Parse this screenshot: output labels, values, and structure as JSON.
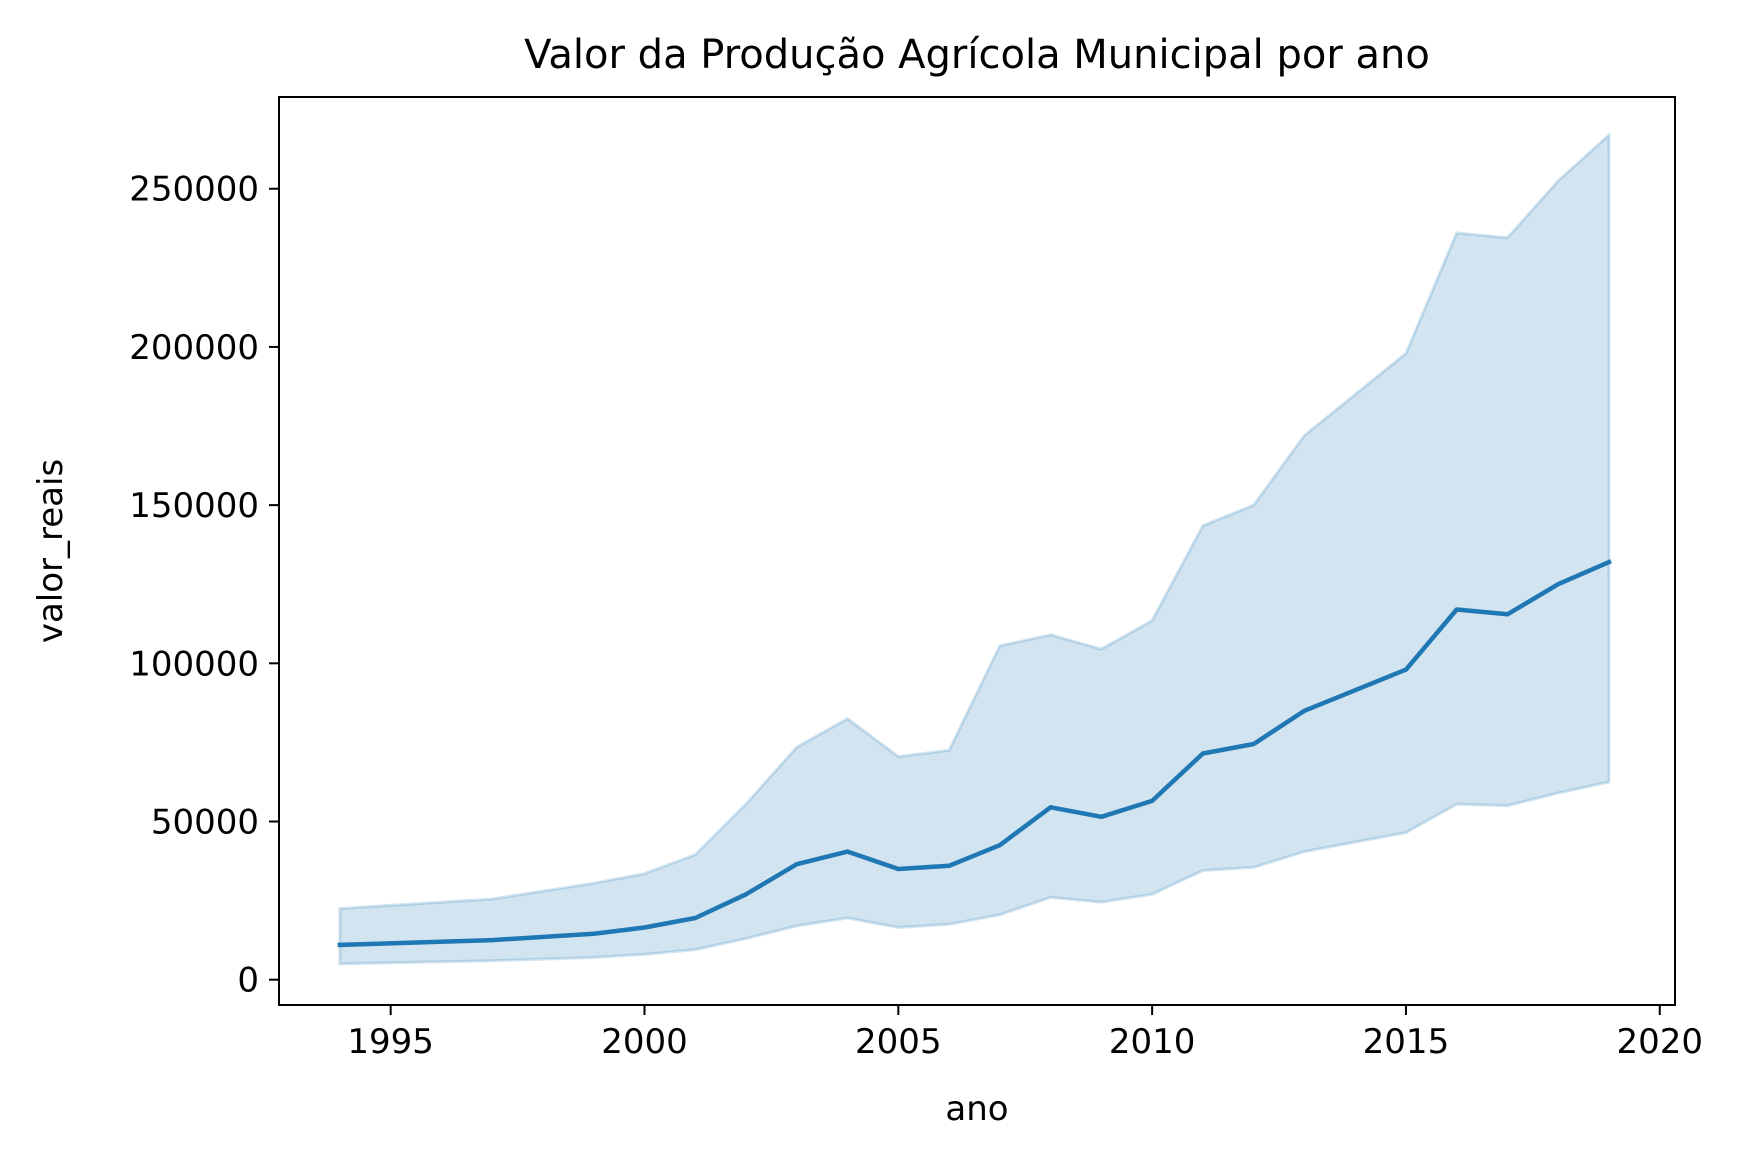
{
  "chart_data": {
    "type": "line",
    "title": "Valor da Produção Agrícola Municipal por ano",
    "xlabel": "ano",
    "ylabel": "valor_reais",
    "xlim": [
      1992.8,
      2020.3
    ],
    "ylim": [
      -8000,
      279000
    ],
    "x_ticks": [
      1995,
      2000,
      2005,
      2010,
      2015,
      2020
    ],
    "y_ticks": [
      0,
      50000,
      100000,
      150000,
      200000,
      250000
    ],
    "grid": false,
    "legend": "none",
    "colors": {
      "line": "#1f77b4",
      "band": "#1f77b4"
    },
    "x": [
      1994,
      1997,
      1999,
      2000,
      2001,
      2002,
      2003,
      2004,
      2005,
      2006,
      2007,
      2008,
      2009,
      2010,
      2011,
      2012,
      2013,
      2014,
      2015,
      2016,
      2017,
      2018,
      2019
    ],
    "series": [
      {
        "values": [
          11000,
          12500,
          14500,
          16500,
          19500,
          27000,
          36500,
          40500,
          35000,
          36000,
          42500,
          54500,
          51500,
          56500,
          71500,
          74500,
          85000,
          91500,
          98000,
          117000,
          115500,
          125000,
          132000
        ],
        "ci_lower": [
          5000,
          6000,
          7000,
          8000,
          9500,
          13000,
          17000,
          19500,
          16500,
          17500,
          20500,
          26000,
          24500,
          27000,
          34500,
          35500,
          40500,
          43500,
          46500,
          55500,
          55000,
          59000,
          62500
        ],
        "ci_upper": [
          22500,
          25500,
          30500,
          33500,
          39500,
          55500,
          73500,
          82500,
          70500,
          72500,
          105500,
          109000,
          104500,
          113500,
          143500,
          150000,
          172000,
          185000,
          198000,
          236000,
          234500,
          252500,
          267000
        ]
      }
    ]
  }
}
